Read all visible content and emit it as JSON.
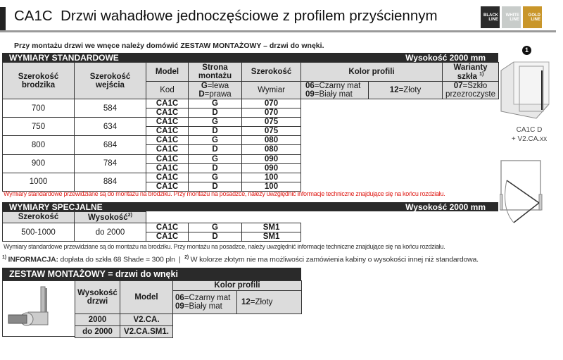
{
  "header": {
    "title": "CA1C  Drzwi wahadłowe jednoczęściowe z profilem przyściennym",
    "badges": [
      {
        "top": "BLACK",
        "bottom": "LINE",
        "color": "#2b2b2b"
      },
      {
        "top": "WHITE",
        "bottom": "LINE",
        "color": "#c8ccca"
      },
      {
        "top": "GOLD",
        "bottom": "LINE",
        "color": "#c9962a"
      }
    ]
  },
  "note_top": {
    "pre": "Przy montażu drzwi we wnęce należy domówić ",
    "bold": "ZESTAW MONTAŻOWY",
    "post": " – drzwi do wnęki."
  },
  "standard": {
    "title": "WYMIARY STANDARDOWE",
    "height": "Wysokość 2000 mm",
    "headers": {
      "tray_width": "Szerokość brodzika",
      "entry_width": "Szerokość wejścia",
      "model": "Model",
      "side": "Strona montażu",
      "width": "Szerokość",
      "color": "Kolor profili",
      "glass": "Warianty szkła",
      "glass_sup": "1)"
    },
    "subheaders": {
      "code": "Kod",
      "side_g_code": "G",
      "side_g": "=lewa",
      "side_d_code": "D",
      "side_d": "=prawa",
      "size": "Wymiar",
      "c06": "06",
      "c06_l": "=Czarny mat",
      "c09": "09",
      "c09_l": "=Biały mat",
      "c12": "12",
      "c12_l": "=Złoty",
      "g07": "07",
      "g07_l": "=Szkło przezroczyste"
    },
    "rows": [
      {
        "tray": "700",
        "entry": "584",
        "items": [
          {
            "model": "CA1C",
            "side": "G",
            "code": "070"
          },
          {
            "model": "CA1C",
            "side": "D",
            "code": "070"
          }
        ]
      },
      {
        "tray": "750",
        "entry": "634",
        "items": [
          {
            "model": "CA1C",
            "side": "G",
            "code": "075"
          },
          {
            "model": "CA1C",
            "side": "D",
            "code": "075"
          }
        ]
      },
      {
        "tray": "800",
        "entry": "684",
        "items": [
          {
            "model": "CA1C",
            "side": "G",
            "code": "080"
          },
          {
            "model": "CA1C",
            "side": "D",
            "code": "080"
          }
        ]
      },
      {
        "tray": "900",
        "entry": "784",
        "items": [
          {
            "model": "CA1C",
            "side": "G",
            "code": "090"
          },
          {
            "model": "CA1C",
            "side": "D",
            "code": "090"
          }
        ]
      },
      {
        "tray": "1000",
        "entry": "884",
        "items": [
          {
            "model": "CA1C",
            "side": "G",
            "code": "100"
          },
          {
            "model": "CA1C",
            "side": "D",
            "code": "100"
          }
        ]
      }
    ],
    "note": "Wymiary standardowe przewidziane są do montażu na brodziku. Przy montażu na posadzce, należy uwzględnić informacje techniczne znajdujące się na końcu rozdziału.",
    "note_color": "#e0201b"
  },
  "special": {
    "title": "WYMIARY SPECJALNE",
    "height": "Wysokość 2000 mm",
    "h_width": "Szerokość",
    "h_height": "Wysokość",
    "h_height_sup": "2)",
    "width": "500-1000",
    "height_val": "do 2000",
    "items": [
      {
        "model": "CA1C",
        "side": "G",
        "code": "SM1"
      },
      {
        "model": "CA1C",
        "side": "D",
        "code": "SM1"
      }
    ],
    "note": "Wymiary standardowe przewidziane są do montażu na brodziku. Przy montażu na posadzce, należy uwzględnić informacje techniczne znajdujące się na końcu rozdziału."
  },
  "info": {
    "sup1": "1)",
    "label": "INFORMACJA:",
    "text1": " dopłata do szkła 68 Shade = 300 pln  |  ",
    "sup2": "2)",
    "text2": " W kolorze złotym nie ma możliwości zamówienia kabiny o wysokości innej niż standardowa."
  },
  "kit": {
    "title": "ZESTAW MONTAŻOWY = drzwi do wnęki",
    "h_height": "Wysokość drzwi",
    "h_model": "Model",
    "h_color": "Kolor profili",
    "c06": "06",
    "c06_l": "=Czarny mat",
    "c09": "09",
    "c09_l": "=Biały mat",
    "c12": "12",
    "c12_l": "=Złoty",
    "rows": [
      {
        "height": "2000",
        "model": "V2.CA."
      },
      {
        "height": "do 2000",
        "model": "V2.CA.SM1."
      }
    ]
  },
  "figure": {
    "number": "1",
    "caption1": "CA1C D",
    "caption2": "+ V2.CA.xx"
  }
}
